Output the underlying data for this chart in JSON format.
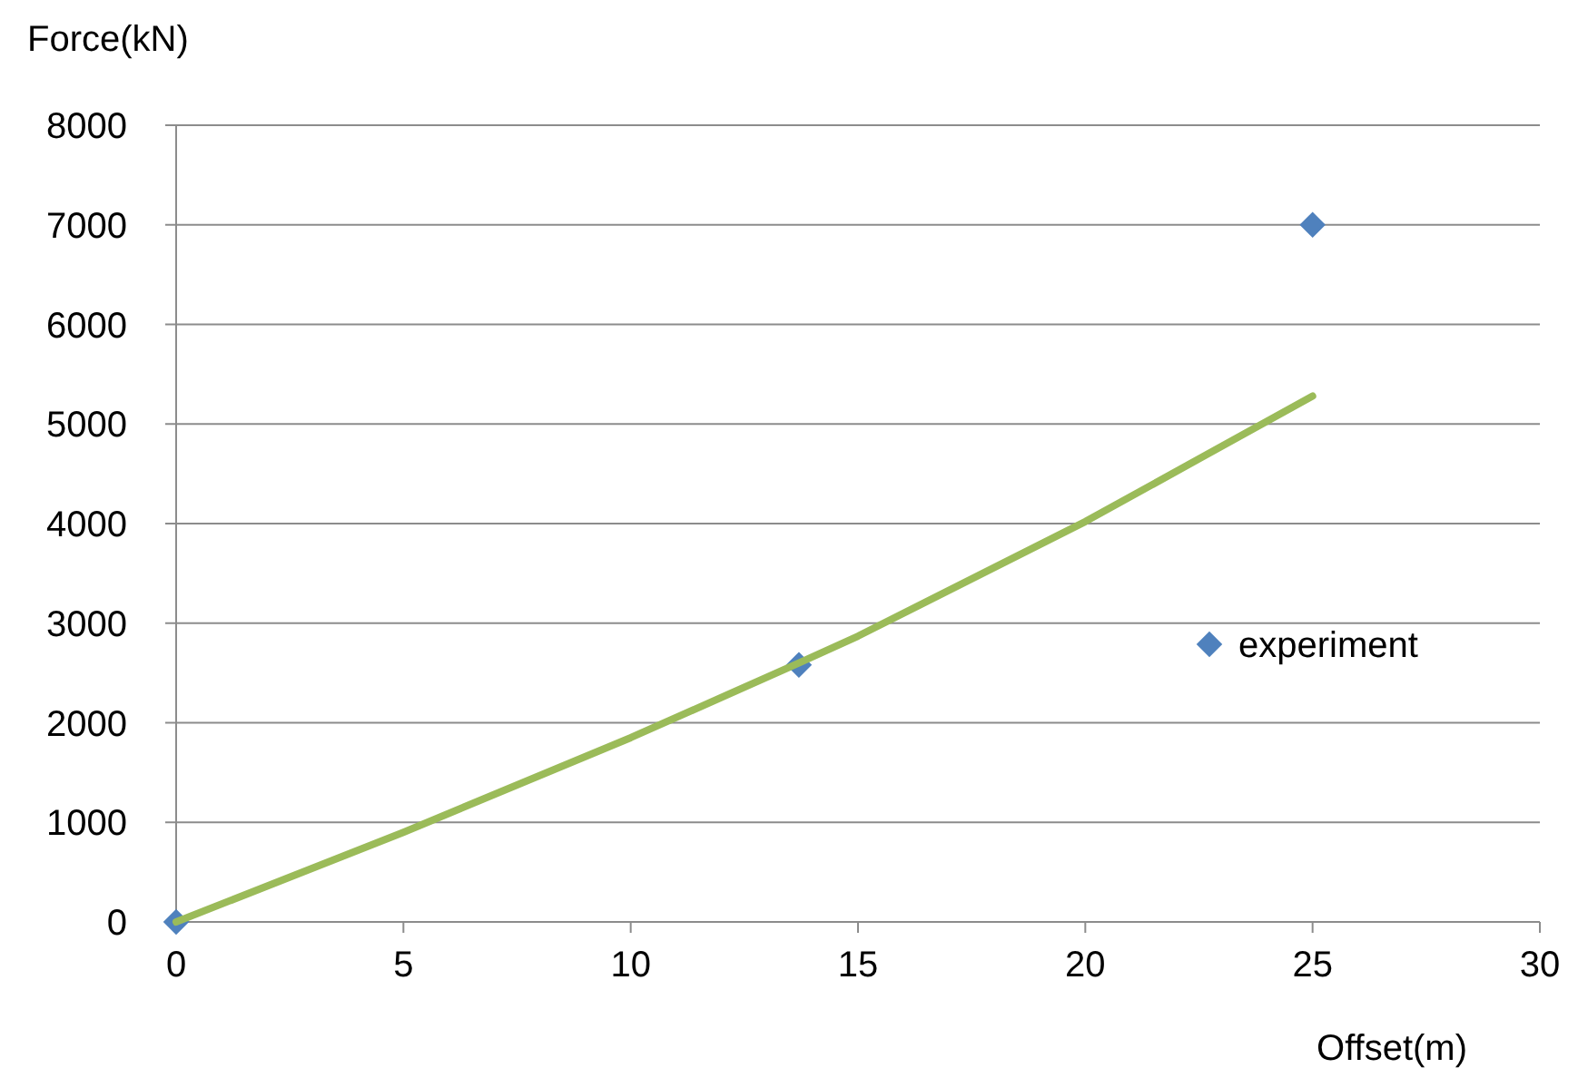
{
  "chart_data": {
    "type": "scatter",
    "xlabel": "Offset(m)",
    "ylabel": "Force(kN)",
    "xlim": [
      0,
      30
    ],
    "xticks": [
      0,
      5,
      10,
      15,
      20,
      25,
      30
    ],
    "ylim": [
      0,
      8000
    ],
    "yticks": [
      0,
      1000,
      2000,
      3000,
      4000,
      5000,
      6000,
      7000,
      8000
    ],
    "grid": "y",
    "legend": "right",
    "series": [
      {
        "name": "experiment",
        "marker": "diamond",
        "color": "#4f81bd",
        "x": [
          0,
          13.7,
          25
        ],
        "values": [
          0,
          2580,
          7000
        ]
      },
      {
        "type": "line",
        "marker": "none",
        "color": "#9bbb59",
        "x": [
          0,
          5,
          10,
          13.7,
          15,
          20,
          25
        ],
        "values": [
          0,
          900,
          1850,
          2600,
          2870,
          4020,
          5280
        ]
      }
    ]
  }
}
